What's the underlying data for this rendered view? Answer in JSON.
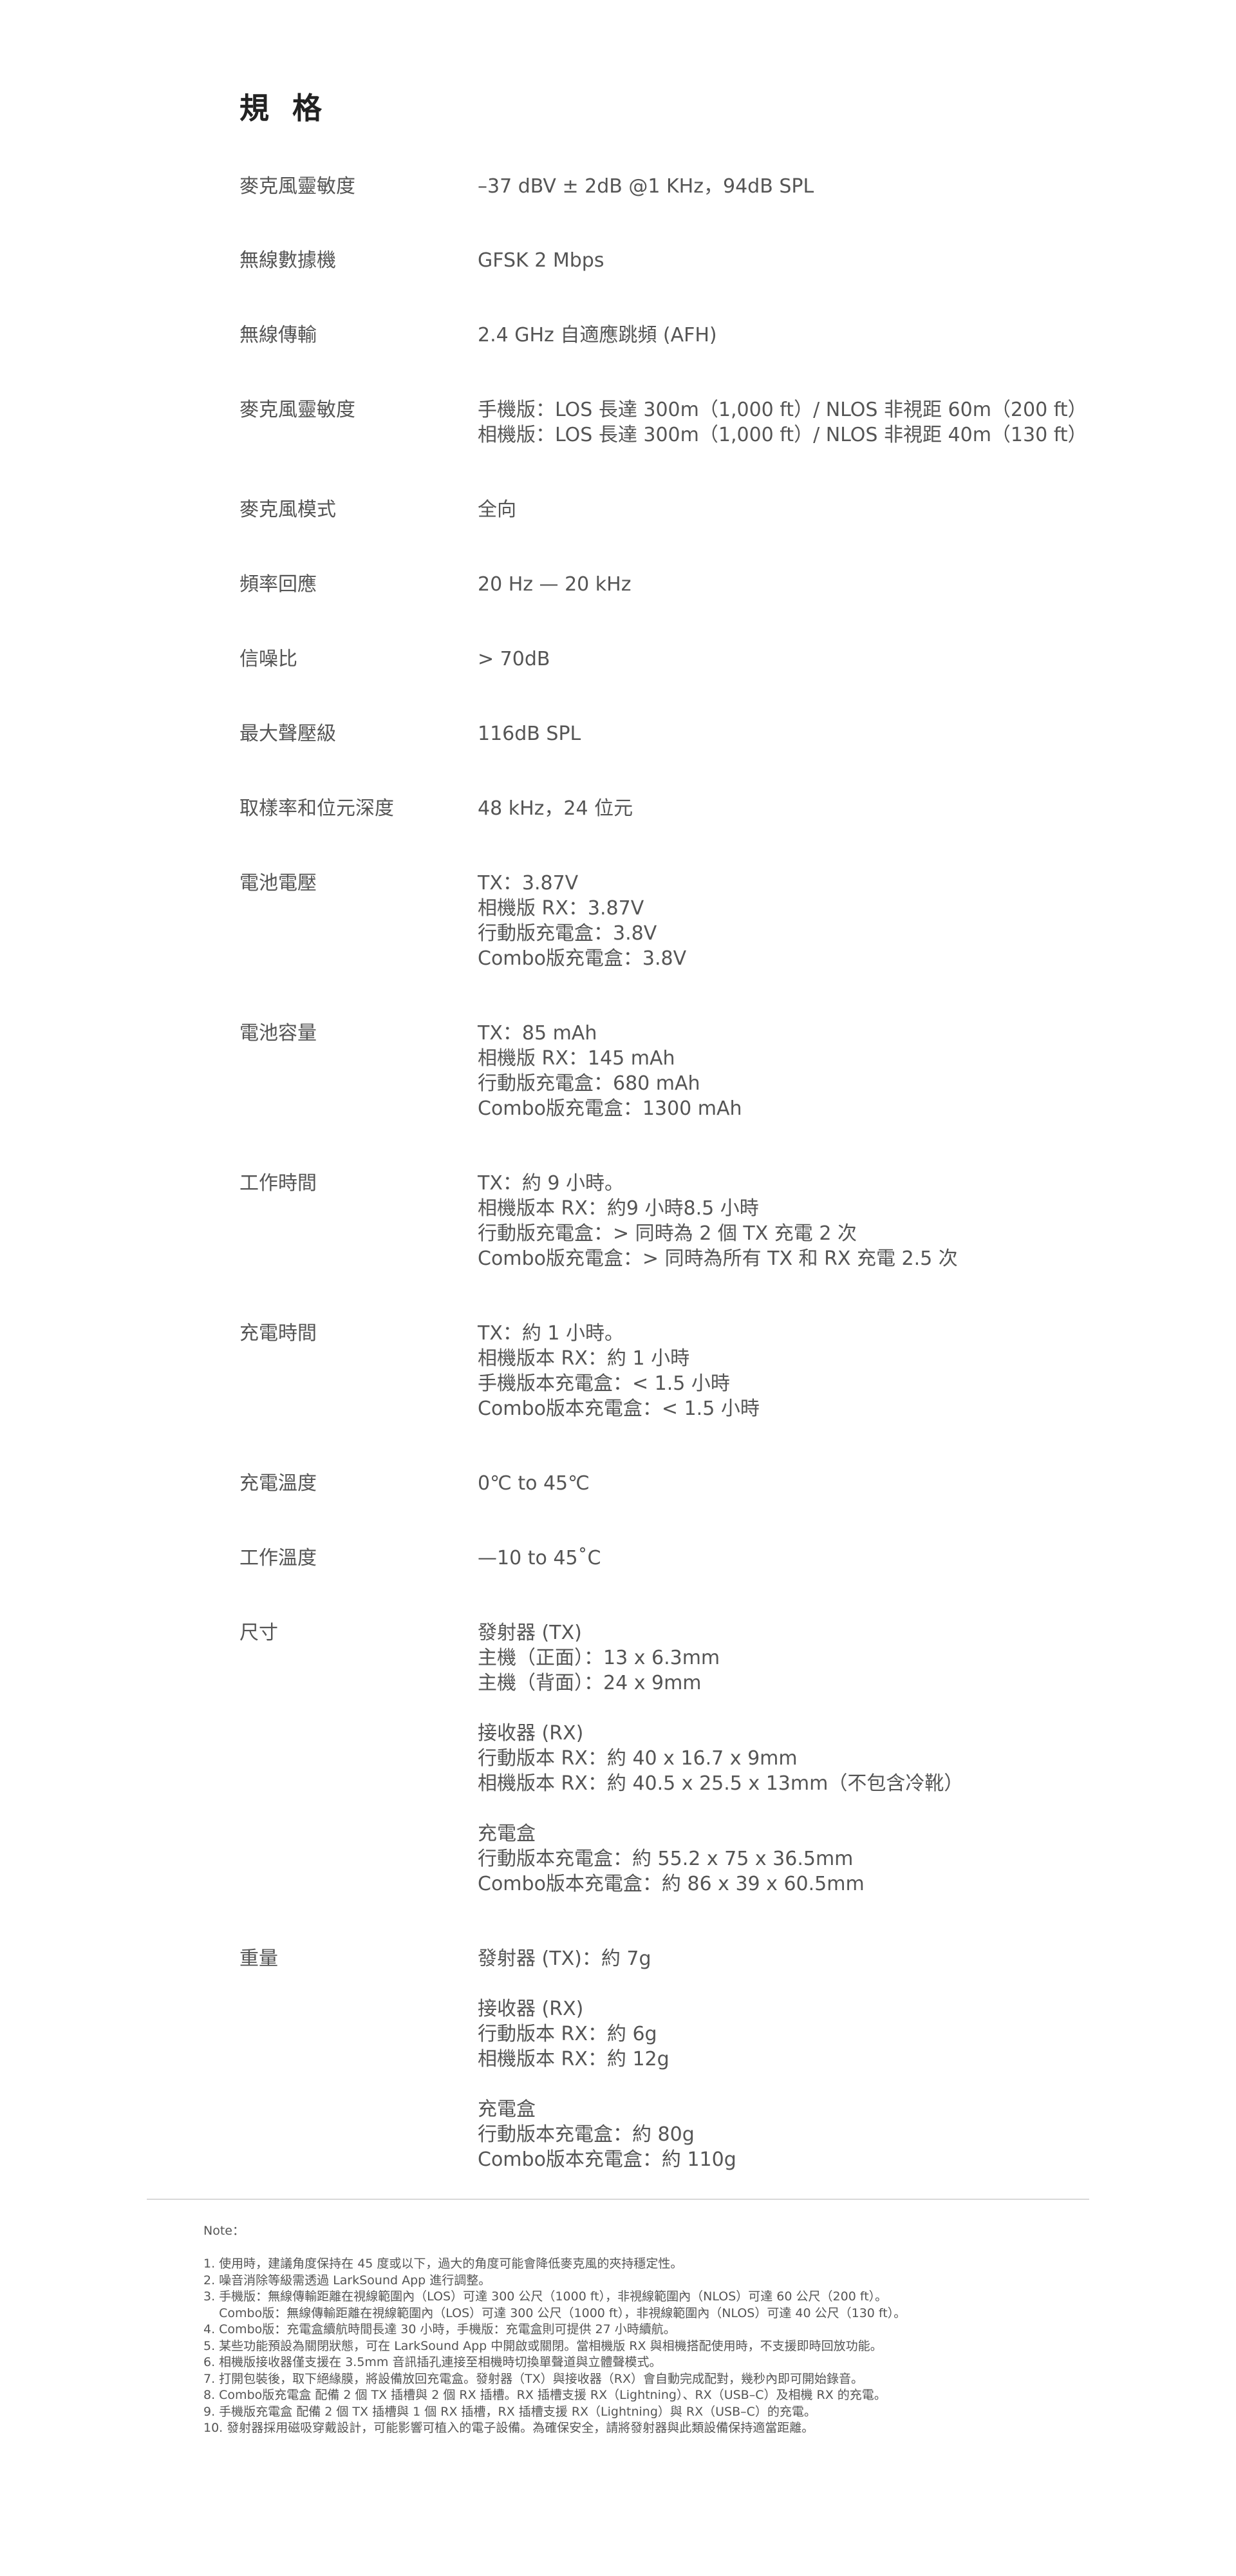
{
  "page": {
    "title": "規 格"
  },
  "specs": [
    {
      "label": "麥克風靈敏度",
      "lines": [
        "–37 dBV ± 2dB @1 KHz，94dB SPL"
      ]
    },
    {
      "label": "無線數據機",
      "lines": [
        "GFSK 2 Mbps"
      ]
    },
    {
      "label": "無線傳輸",
      "lines": [
        "2.4 GHz 自適應跳頻 (AFH)"
      ]
    },
    {
      "label": "麥克風靈敏度",
      "lines": [
        "手機版：LOS 長達 300m（1,000 ft）/ NLOS 非視距 60m（200 ft）",
        "相機版：LOS 長達 300m（1,000 ft）/ NLOS 非視距 40m（130 ft）"
      ]
    },
    {
      "label": "麥克風模式",
      "lines": [
        "全向"
      ]
    },
    {
      "label": "頻率回應",
      "lines": [
        "20 Hz — 20 kHz"
      ]
    },
    {
      "label": "信噪比",
      "lines": [
        "> 70dB"
      ]
    },
    {
      "label": "最大聲壓級",
      "lines": [
        "116dB SPL"
      ]
    },
    {
      "label": "取樣率和位元深度",
      "lines": [
        "48 kHz，24 位元"
      ]
    },
    {
      "label": "電池電壓",
      "lines": [
        "TX：3.87V",
        "相機版 RX：3.87V",
        "行動版充電盒：3.8V",
        "Combo版充電盒：3.8V"
      ]
    },
    {
      "label": "電池容量",
      "lines": [
        "TX：85 mAh",
        "相機版 RX：145 mAh",
        "行動版充電盒：680 mAh",
        "Combo版充電盒：1300 mAh"
      ]
    },
    {
      "label": "工作時間",
      "lines": [
        "TX：約 9 小時。",
        "相機版本 RX：約9 小時8.5 小時",
        "行動版充電盒：> 同時為 2 個 TX 充電 2 次",
        "Combo版充電盒：> 同時為所有 TX 和 RX 充電 2.5 次"
      ]
    },
    {
      "label": "充電時間",
      "lines": [
        "TX：約 1 小時。",
        "相機版本 RX：約 1 小時",
        "手機版本充電盒：< 1.5 小時",
        "Combo版本充電盒：< 1.5 小時"
      ]
    },
    {
      "label": "充電溫度",
      "lines": [
        "0℃ to 45℃"
      ]
    },
    {
      "label": "工作溫度",
      "lines": [
        "—10 to 45˚C"
      ]
    },
    {
      "label": "尺寸",
      "lines": [
        "發射器 (TX)",
        "主機（正面）：13 x 6.3mm",
        "主機（背面）：24 x 9mm",
        "",
        "接收器 (RX)",
        "行動版本 RX：約 40 x 16.7 x 9mm",
        "相機版本 RX：約 40.5 x 25.5 x 13mm（不包含冷靴）",
        "",
        "充電盒",
        "行動版本充電盒：約 55.2 x 75 x 36.5mm",
        "Combo版本充電盒：約 86 x 39 x 60.5mm"
      ]
    },
    {
      "label": "重量",
      "lines": [
        "發射器 (TX)：約 7g",
        "",
        "接收器 (RX)",
        "行動版本 RX：約 6g",
        "相機版本 RX：約 12g",
        "",
        "充電盒",
        "行動版本充電盒：約 80g",
        "Combo版本充電盒：約 110g"
      ]
    }
  ],
  "notes": {
    "title": "Note：",
    "items": [
      "1. 使用時，建議角度保持在 45 度或以下，過大的角度可能會降低麥克風的夾持穩定性。",
      "2. 噪音消除等級需透過 LarkSound App 進行調整。",
      "3. 手機版：無線傳輸距離在視線範圍內（LOS）可達 300 公尺（1000 ft），非視線範圍內（NLOS）可達 60 公尺（200 ft）。",
      "    Combo版：無線傳輸距離在視線範圍內（LOS）可達 300 公尺（1000 ft），非視線範圍內（NLOS）可達 40 公尺（130 ft）。",
      "4. Combo版：充電盒續航時間長達 30 小時，手機版：充電盒則可提供 27 小時續航。",
      "5. 某些功能預設為關閉狀態，可在 LarkSound App 中開啟或關閉。當相機版 RX 與相機搭配使用時，不支援即時回放功能。",
      "6. 相機版接收器僅支援在 3.5mm 音訊插孔連接至相機時切換單聲道與立體聲模式。",
      "7. 打開包裝後，取下絕緣膜，將設備放回充電盒。發射器（TX）與接收器（RX）會自動完成配對，幾秒內即可開始錄音。",
      "8. Combo版充電盒 配備 2 個 TX 插槽與 2 個 RX 插槽。RX 插槽支援 RX（Lightning）、RX（USB–C）及相機 RX 的充電。",
      "9. 手機版充電盒 配備 2 個 TX 插槽與 1 個 RX 插槽，RX 插槽支援 RX（Lightning）與 RX（USB–C）的充電。",
      "10. 發射器採用磁吸穿戴設計，可能影響可植入的電子設備。為確保安全，請將發射器與此類設備保持適當距離。"
    ]
  }
}
